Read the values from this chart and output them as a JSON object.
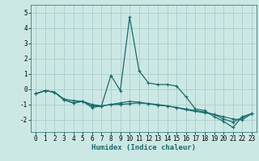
{
  "xlabel": "Humidex (Indice chaleur)",
  "ylabel": "",
  "background_color": "#cce8e5",
  "grid_color": "#aacccc",
  "line_color": "#1a6b6b",
  "series": [
    {
      "x": [
        0,
        1,
        2,
        3,
        4,
        5,
        6,
        7,
        8,
        9,
        10,
        11,
        12,
        13,
        14,
        15,
        16,
        17,
        18,
        19,
        20,
        21,
        22,
        23
      ],
      "y": [
        -0.3,
        -0.1,
        -0.2,
        -0.7,
        -0.9,
        -0.8,
        -1.2,
        -1.1,
        0.9,
        -0.1,
        4.7,
        1.2,
        0.4,
        0.3,
        0.3,
        0.2,
        -0.5,
        -1.3,
        -1.4,
        -1.8,
        -2.1,
        -2.5,
        -1.8,
        -1.6
      ]
    },
    {
      "x": [
        0,
        1,
        2,
        3,
        4,
        5,
        6,
        7,
        8,
        9,
        10,
        11,
        12,
        13,
        14,
        15,
        16,
        17,
        18,
        19,
        20,
        21,
        22,
        23
      ],
      "y": [
        -0.3,
        -0.1,
        -0.2,
        -0.7,
        -0.9,
        -0.8,
        -1.1,
        -1.1,
        -1.0,
        -0.9,
        -0.8,
        -0.85,
        -0.95,
        -1.05,
        -1.1,
        -1.2,
        -1.35,
        -1.45,
        -1.55,
        -1.65,
        -1.8,
        -1.95,
        -2.0,
        -1.6
      ]
    },
    {
      "x": [
        0,
        1,
        2,
        3,
        4,
        5,
        6,
        7,
        8,
        9,
        10,
        11,
        12,
        13,
        14,
        15,
        16,
        17,
        18,
        19,
        20,
        21,
        22,
        23
      ],
      "y": [
        -0.3,
        -0.1,
        -0.2,
        -0.65,
        -0.75,
        -0.8,
        -1.0,
        -1.1,
        -1.0,
        -1.0,
        -0.95,
        -0.9,
        -0.95,
        -1.0,
        -1.1,
        -1.2,
        -1.3,
        -1.4,
        -1.5,
        -1.65,
        -1.95,
        -2.15,
        -1.85,
        -1.6
      ]
    }
  ],
  "ylim": [
    -2.8,
    5.5
  ],
  "xlim": [
    -0.5,
    23.5
  ],
  "yticks": [
    -2,
    -1,
    0,
    1,
    2,
    3,
    4,
    5
  ],
  "xticks": [
    0,
    1,
    2,
    3,
    4,
    5,
    6,
    7,
    8,
    9,
    10,
    11,
    12,
    13,
    14,
    15,
    16,
    17,
    18,
    19,
    20,
    21,
    22,
    23
  ],
  "marker": "+",
  "markersize": 3.5,
  "linewidth": 0.9,
  "tick_fontsize": 5.5,
  "xlabel_fontsize": 6.5
}
